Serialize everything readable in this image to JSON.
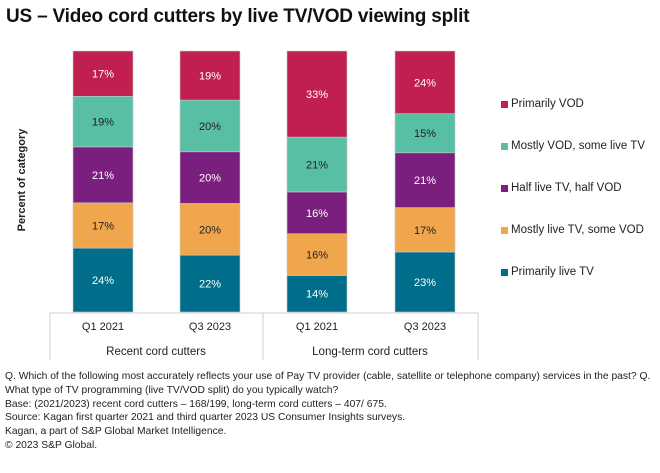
{
  "title": "US – Video cord cutters by live TV/VOD viewing split",
  "chart_data": {
    "type": "bar",
    "stacked": true,
    "title": "US – Video cord cutters by live TV/VOD viewing split",
    "xlabel": "",
    "ylabel": "Percent of category",
    "ylim": [
      0,
      100
    ],
    "grid": false,
    "legend_position": "right",
    "categories": [
      "Q1 2021",
      "Q3 2023",
      "Q1 2021",
      "Q3 2023"
    ],
    "groups": [
      {
        "label": "Recent cord cutters",
        "categories": [
          "Q1 2021",
          "Q3 2023"
        ]
      },
      {
        "label": "Long-term cord cutters",
        "categories": [
          "Q1 2021",
          "Q3 2023"
        ]
      }
    ],
    "series": [
      {
        "name": "Primarily live TV",
        "color": "#006E8A",
        "label_color": "#ffffff",
        "values": [
          24,
          22,
          14,
          23
        ]
      },
      {
        "name": "Mostly live TV, some VOD",
        "color": "#F0A64D",
        "label_color": "#222222",
        "values": [
          17,
          20,
          16,
          17
        ]
      },
      {
        "name": "Half live TV, half VOD",
        "color": "#7A1F7E",
        "label_color": "#ffffff",
        "values": [
          21,
          20,
          16,
          21
        ]
      },
      {
        "name": "Mostly VOD, some live TV",
        "color": "#58BFA4",
        "label_color": "#222222",
        "values": [
          19,
          20,
          21,
          15
        ]
      },
      {
        "name": "Primarily VOD",
        "color": "#C11F4F",
        "label_color": "#ffffff",
        "values": [
          17,
          19,
          33,
          24
        ]
      }
    ],
    "legend_order": [
      "Primarily VOD",
      "Mostly VOD, some live TV",
      "Half live TV, half VOD",
      "Mostly live TV, some VOD",
      "Primarily live TV"
    ],
    "value_suffix": "%"
  },
  "notes": [
    "Q. Which of the following most accurately reflects your use of Pay TV provider (cable, satellite or telephone company) services in the past? Q. What type of TV programming (live TV/VOD split) do you typically watch?",
    "Base: (2021/2023) recent cord cutters – 168/199, long-term cord cutters – 407/ 675.",
    "Source: Kagan first quarter 2021 and third quarter 2023 US Consumer Insights surveys.",
    "Kagan, a part of S&P Global Market Intelligence.",
    "© 2023 S&P Global."
  ]
}
